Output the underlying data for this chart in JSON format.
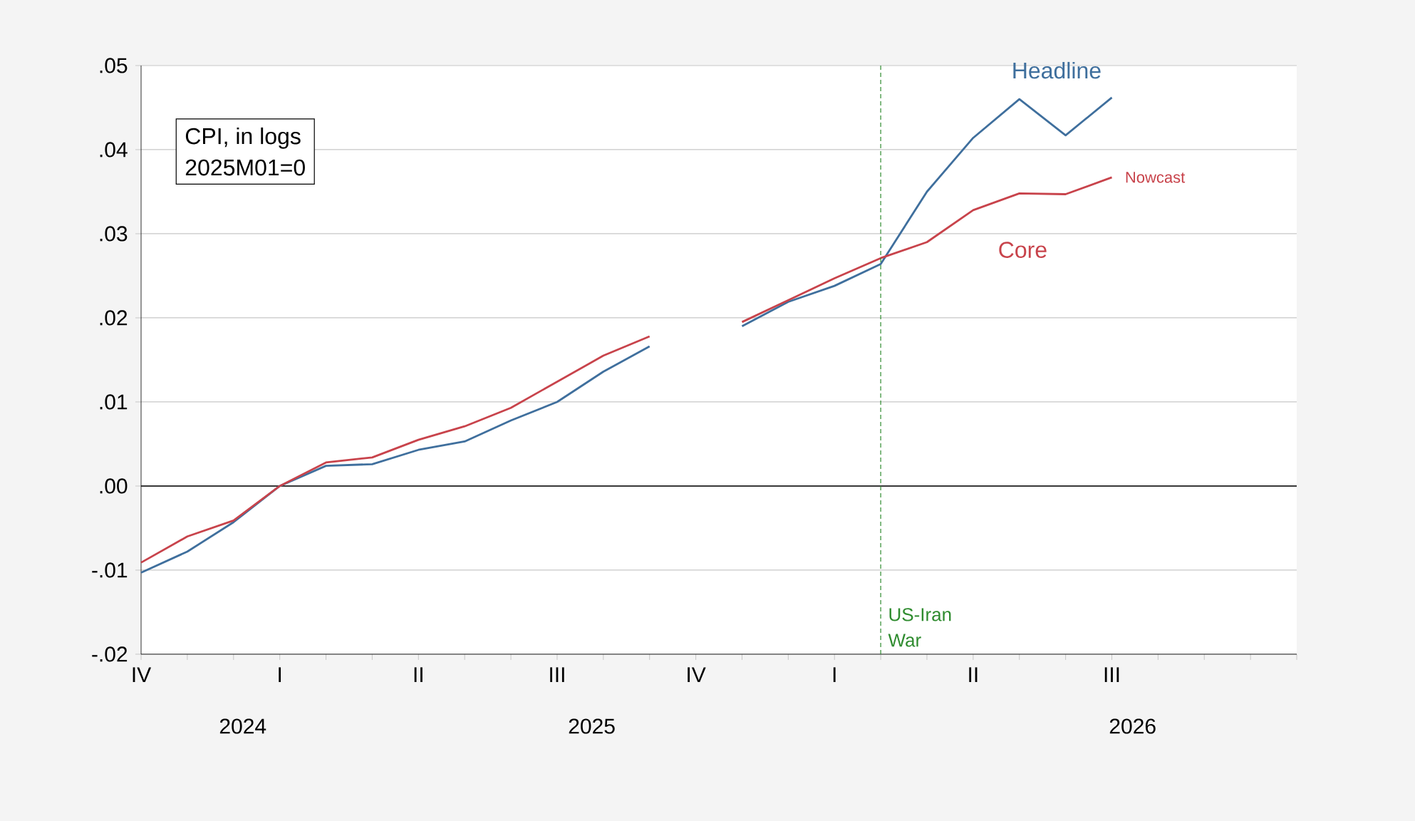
{
  "chart_data": {
    "type": "line",
    "categories": [
      "IV",
      null,
      null,
      "I",
      null,
      null,
      "II",
      null,
      null,
      "III",
      null,
      null,
      "IV",
      null,
      null,
      "I",
      null,
      null,
      "II",
      null,
      null,
      "III",
      null,
      null,
      null,
      null
    ],
    "series": [
      {
        "name": "Headline",
        "color": "#3f6f9d",
        "values": [
          -0.0103,
          -0.0078,
          -0.0043,
          0,
          0.0024,
          0.0026,
          0.0043,
          0.0053,
          0.0078,
          0.01,
          0.0136,
          0.0166,
          null,
          0.019,
          0.0219,
          0.0238,
          0.0264,
          0.035,
          0.0414,
          0.046,
          0.0417,
          0.0462,
          null,
          null,
          null,
          null
        ]
      },
      {
        "name": "Core",
        "color": "#c8434b",
        "values": [
          -0.0091,
          -0.006,
          -0.0041,
          0,
          0.0028,
          0.0034,
          0.0055,
          0.0071,
          0.0093,
          0.0124,
          0.0155,
          0.0178,
          null,
          0.0195,
          0.0221,
          0.0247,
          0.0271,
          0.029,
          0.0328,
          0.0348,
          0.0347,
          0.0367,
          null,
          null,
          null,
          null
        ]
      }
    ],
    "ylim": [
      -0.02,
      0.05
    ],
    "yticks": [
      {
        "value": -0.02,
        "label": "-.02"
      },
      {
        "value": -0.01,
        "label": "-.01"
      },
      {
        "value": 0,
        "label": ".00"
      },
      {
        "value": 0.01,
        "label": ".01"
      },
      {
        "value": 0.02,
        "label": ".02"
      },
      {
        "value": 0.03,
        "label": ".03"
      },
      {
        "value": 0.04,
        "label": ".04"
      },
      {
        "value": 0.05,
        "label": ".05"
      }
    ],
    "grid": "y",
    "ref_lines": [
      {
        "axis": "y",
        "value": 0,
        "color": "#000000"
      }
    ],
    "annotations": [
      "CPI, in logs",
      "2025M01=0",
      "Nowcast",
      "US-Iran War",
      "2024",
      "2025",
      "2026"
    ]
  }
}
